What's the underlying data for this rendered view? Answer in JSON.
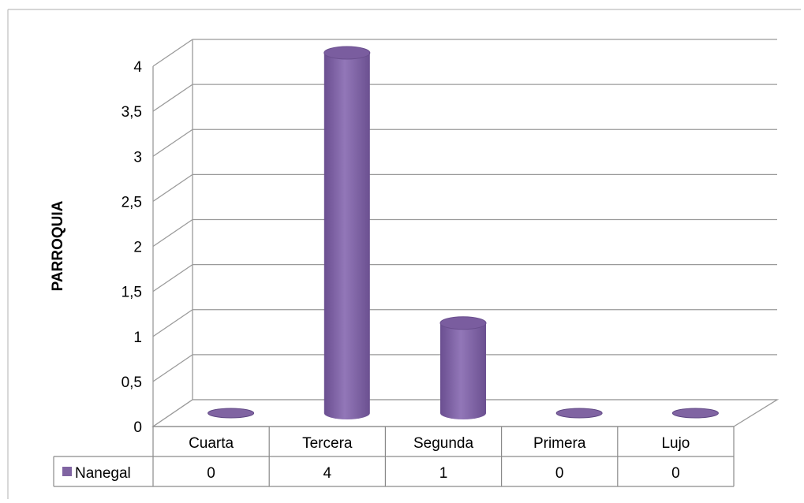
{
  "chart_data": {
    "type": "bar",
    "style": "3d-cylinder",
    "categories": [
      "Cuarta",
      "Tercera",
      "Segunda",
      "Primera",
      "Lujo"
    ],
    "series": [
      {
        "name": "Nanegal",
        "values": [
          0,
          4,
          1,
          0,
          0
        ],
        "color": "#8064a2"
      }
    ],
    "ylabel": "PARROQUIA",
    "ylim": [
      0,
      4
    ],
    "yticks": [
      "0",
      "0,5",
      "1",
      "1,5",
      "2",
      "2,5",
      "3",
      "3,5",
      "4"
    ],
    "grid": true,
    "legend": "data-table"
  }
}
